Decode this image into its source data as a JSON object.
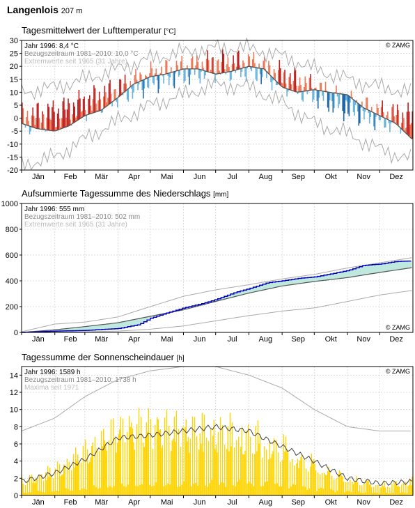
{
  "station": {
    "name": "Langenlois",
    "altitude": "207 m"
  },
  "months": [
    "Jän",
    "Feb",
    "Mär",
    "Apr",
    "Mai",
    "Jun",
    "Jul",
    "Aug",
    "Sep",
    "Okt",
    "Nov",
    "Dez"
  ],
  "copyright": "© ZAMG",
  "colors": {
    "warm": "#ee7755",
    "warm_dark": "#bb2222",
    "cold": "#66b4dd",
    "cold_dark": "#2266aa",
    "precip_line": "#0000bb",
    "precip_fill": "#bfe9df",
    "sun": "#ffd400",
    "grey": "#999999"
  },
  "chart_data": [
    {
      "type": "line",
      "title": "Tagesmittelwert der Lufttemperatur",
      "unit": "[°C]",
      "ylim": [
        -20,
        30
      ],
      "yticks": [
        -20,
        -15,
        -10,
        -5,
        0,
        5,
        10,
        15,
        20,
        25,
        30
      ],
      "legend": [
        "Jahr 1996: 8,4 °C",
        "Bezugszeitraum 1981–2010: 10,0 °C",
        "Extremwerte seit 1965 (31 Jahre)"
      ],
      "grid": true,
      "series": [
        {
          "name": "Bezugszeitraum 1981–2010",
          "x": [
            1,
            32,
            60,
            91,
            121,
            152,
            182,
            213,
            244,
            274,
            305,
            335,
            365
          ],
          "values": [
            -0.5,
            1.2,
            5.2,
            10.2,
            15.3,
            18.3,
            20.3,
            20.2,
            15.5,
            10.3,
            4.5,
            0.8,
            -0.5
          ]
        },
        {
          "name": "Jahr 1996",
          "x": [
            1,
            15,
            32,
            45,
            60,
            75,
            91,
            105,
            121,
            135,
            152,
            166,
            182,
            196,
            213,
            227,
            244,
            258,
            274,
            288,
            305,
            320,
            335,
            350,
            365
          ],
          "values": [
            -2,
            -4,
            -5,
            -3,
            1,
            3,
            8,
            13,
            16,
            17,
            19,
            19,
            17,
            18,
            20,
            19,
            12,
            10,
            11,
            10,
            9,
            4,
            1,
            -2,
            -8
          ]
        },
        {
          "name": "Extremwerte Maximum",
          "x": [
            1,
            32,
            60,
            91,
            121,
            152,
            182,
            213,
            244,
            274,
            305,
            335,
            365
          ],
          "values": [
            10,
            12,
            15,
            19,
            23,
            25.5,
            27,
            27,
            24,
            19,
            15,
            12,
            10
          ]
        },
        {
          "name": "Extremwerte Minimum",
          "x": [
            1,
            32,
            60,
            91,
            121,
            152,
            182,
            213,
            244,
            274,
            305,
            335,
            365
          ],
          "values": [
            -18,
            -15,
            -8,
            -1,
            5,
            9,
            13,
            12,
            6,
            -2,
            -6,
            -12,
            -16
          ]
        }
      ]
    },
    {
      "type": "line",
      "title": "Aufsummierte Tagessumme des Niederschlags",
      "unit": "[mm]",
      "ylim": [
        0,
        1000
      ],
      "yticks": [
        0,
        200,
        400,
        600,
        800,
        1000
      ],
      "legend": [
        "Jahr 1996: 555 mm",
        "Bezugszeitraum 1981–2010: 502 mm",
        "Extremwerte seit 1965 (31 Jahre)"
      ],
      "grid": true,
      "series": [
        {
          "name": "Jahr 1996",
          "x": [
            1,
            32,
            60,
            91,
            110,
            121,
            140,
            152,
            170,
            182,
            200,
            213,
            230,
            244,
            260,
            274,
            290,
            305,
            320,
            335,
            350,
            365
          ],
          "values": [
            0,
            10,
            15,
            30,
            60,
            110,
            160,
            190,
            225,
            255,
            310,
            340,
            385,
            400,
            420,
            430,
            455,
            480,
            520,
            530,
            550,
            555
          ]
        },
        {
          "name": "Bezugszeitraum 1981–2010",
          "x": [
            1,
            32,
            60,
            91,
            121,
            152,
            182,
            213,
            244,
            274,
            305,
            335,
            365
          ],
          "values": [
            0,
            20,
            45,
            75,
            125,
            175,
            240,
            305,
            360,
            395,
            425,
            465,
            502
          ]
        },
        {
          "name": "Extremwerte Maximum",
          "x": [
            1,
            32,
            60,
            91,
            121,
            152,
            182,
            213,
            244,
            274,
            305,
            335,
            365
          ],
          "values": [
            5,
            65,
            80,
            120,
            200,
            280,
            330,
            370,
            415,
            450,
            500,
            540,
            580
          ]
        },
        {
          "name": "Extremwerte Minimum",
          "x": [
            1,
            32,
            60,
            91,
            121,
            152,
            182,
            213,
            244,
            274,
            305,
            335,
            365
          ],
          "values": [
            0,
            2,
            5,
            10,
            25,
            50,
            90,
            130,
            165,
            190,
            240,
            290,
            325
          ]
        }
      ]
    },
    {
      "type": "bar",
      "title": "Tagessumme der Sonnenscheindauer",
      "unit": "[h]",
      "ylim": [
        0,
        15
      ],
      "yticks": [
        0,
        2,
        4,
        6,
        8,
        10,
        12,
        14
      ],
      "legend": [
        "Jahr 1996: 1589 h",
        "Bezugszeitraum 1981–2010: 1738 h",
        "Maxima seit 1971"
      ],
      "grid": true,
      "series": [
        {
          "name": "Jahr 1996",
          "x": [
            1,
            32,
            60,
            91,
            121,
            152,
            182,
            213,
            244,
            274,
            305,
            335,
            365
          ],
          "values": [
            2,
            3.5,
            6,
            9,
            9.5,
            9,
            9,
            8.5,
            7,
            4.5,
            2.5,
            1.5,
            2
          ]
        },
        {
          "name": "Bezugszeitraum 1981–2010",
          "x": [
            1,
            32,
            60,
            91,
            121,
            152,
            182,
            213,
            244,
            274,
            305,
            335,
            365
          ],
          "values": [
            1.6,
            2.6,
            4.2,
            6.7,
            7.0,
            7.5,
            8.0,
            7.5,
            5.7,
            4.0,
            2.0,
            1.4,
            1.6
          ]
        },
        {
          "name": "Maxima seit 1971",
          "x": [
            1,
            32,
            60,
            91,
            121,
            152,
            182,
            213,
            244,
            274,
            305,
            335,
            365
          ],
          "values": [
            7.5,
            9,
            11.5,
            13.5,
            14.5,
            15,
            15,
            14,
            12.5,
            10,
            8,
            7.5,
            7.5
          ]
        }
      ]
    }
  ]
}
